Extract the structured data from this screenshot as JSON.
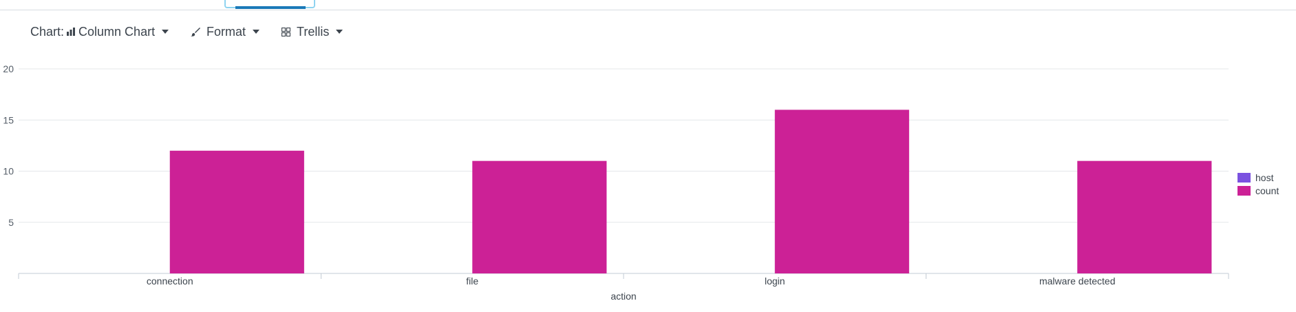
{
  "toolbar": {
    "chart_prefix": "Chart:",
    "chart_type_label": "Column Chart",
    "chart_icon": "bar-chart-icon",
    "format_label": "Format",
    "format_icon": "paintbrush-icon",
    "trellis_label": "Trellis",
    "trellis_icon": "grid-icon"
  },
  "colors": {
    "host": "#7b52e0",
    "count": "#cc2196",
    "gridline": "#e4e7ea",
    "axis": "#c3cbd4"
  },
  "chart_data": {
    "type": "bar",
    "xlabel": "action",
    "ylabel": "",
    "categories": [
      "connection",
      "file",
      "login",
      "malware detected"
    ],
    "series": [
      {
        "name": "host",
        "values": [
          0,
          0,
          0,
          0
        ],
        "color": "#7b52e0"
      },
      {
        "name": "count",
        "values": [
          12,
          11,
          16,
          11
        ],
        "color": "#cc2196"
      }
    ],
    "ylim": [
      0,
      20
    ],
    "yticks": [
      5,
      10,
      15,
      20
    ],
    "grid": true,
    "legend_position": "right"
  }
}
